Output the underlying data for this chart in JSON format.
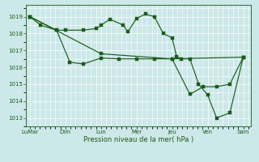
{
  "background_color": "#cce8e8",
  "grid_color": "#ffffff",
  "line_color": "#1a5c1a",
  "title": "Pression niveau de la mer( hPa )",
  "ylim": [
    1012.5,
    1019.7
  ],
  "yticks": [
    1013,
    1014,
    1015,
    1016,
    1017,
    1018,
    1019
  ],
  "x_labels": [
    "LuMar",
    "Dim",
    "Lun",
    "Mer",
    "Jeu",
    "Ven",
    "Sam"
  ],
  "line1_x": [
    0,
    0.4,
    1.0,
    1.33,
    2.0,
    2.5,
    2.67,
    3.0,
    3.5,
    3.67,
    4.0,
    4.33,
    4.67,
    5.0,
    5.33,
    5.5,
    5.67,
    6.0,
    6.33,
    6.67,
    7.0,
    7.5,
    8.0
  ],
  "line1_y": [
    1019.0,
    1018.5,
    1018.2,
    1018.2,
    1018.2,
    1018.3,
    1018.5,
    1018.85,
    1018.5,
    1018.1,
    1018.9,
    1019.15,
    1019.0,
    1018.0,
    1017.75,
    1016.65,
    1016.5,
    1016.5,
    1015.0,
    1014.35,
    1013.0,
    1013.3,
    1016.6
  ],
  "line2_x": [
    0,
    1.0,
    1.5,
    2.0,
    2.67,
    3.33,
    4.0,
    4.67,
    5.33,
    6.0,
    6.5,
    7.0,
    7.5,
    8.0
  ],
  "line2_y": [
    1019.0,
    1018.2,
    1016.3,
    1016.2,
    1016.55,
    1016.5,
    1016.5,
    1016.5,
    1016.5,
    1014.4,
    1014.85,
    1014.85,
    1015.0,
    1016.6
  ],
  "line3_x": [
    0,
    2.67,
    5.33,
    8.0
  ],
  "line3_y": [
    1019.0,
    1016.8,
    1016.5,
    1016.6
  ]
}
